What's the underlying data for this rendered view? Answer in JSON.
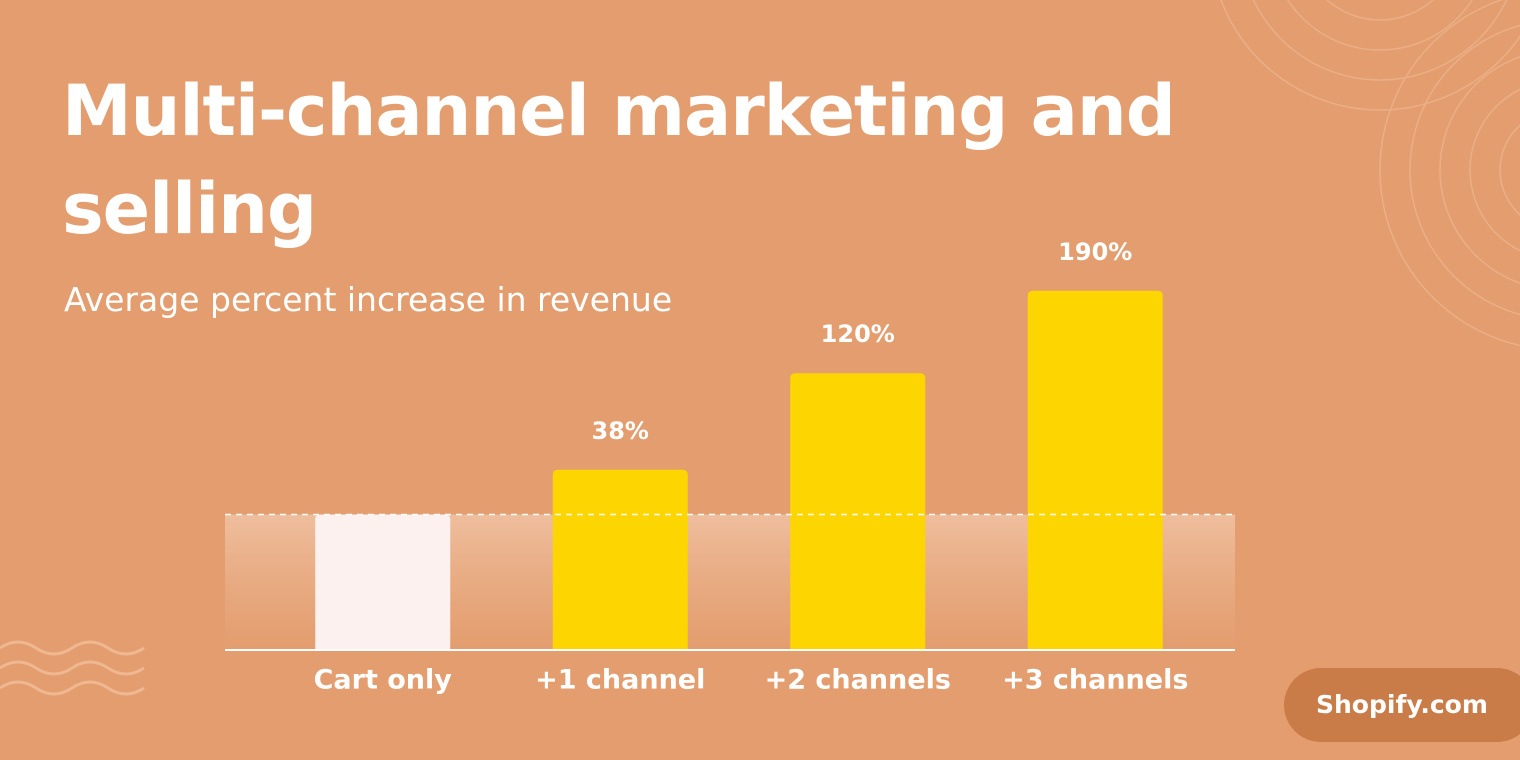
{
  "chart_data": {
    "type": "bar",
    "title": "Multi-channel marketing and selling",
    "subtitle": "Average percent increase in revenue",
    "source": "Shopify.com",
    "categories": [
      "Cart only",
      "+1 channel",
      "+2 channels",
      "+3 channels"
    ],
    "values": [
      0,
      38,
      120,
      190
    ],
    "value_labels": [
      null,
      "38%",
      "120%",
      "190%"
    ],
    "colors": [
      "#fcf1ee",
      "#fdd500",
      "#fdd500",
      "#fdd500"
    ],
    "ylim": [
      -115,
      200
    ],
    "reference_line": 0
  }
}
